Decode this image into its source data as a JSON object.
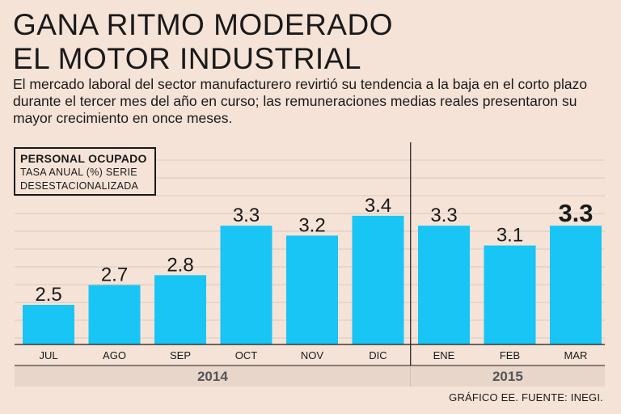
{
  "header": {
    "title_line1": "GANA RITMO MODERADO",
    "title_line2": "EL MOTOR INDUSTRIAL",
    "subtitle": "El mercado laboral del sector manufacturero revirtió su tendencia a la baja en el corto plazo durante el tercer mes del año en curso; las remuneraciones medias reales presentaron su mayor crecimiento en once meses."
  },
  "legend": {
    "title": "PERSONAL OCUPADO",
    "line1": "TASA ANUAL (%) SERIE",
    "line2": "DESESTACIONALIZADA"
  },
  "footer": {
    "source": "GRÁFICO EE. FUENTE: INEGI."
  },
  "colors": {
    "bar": "#18c5f4",
    "background": "#f5e3d7",
    "text": "#1a1a1a",
    "gridline": "#d9c8bd",
    "year_band": "#e9d6ca"
  },
  "chart_data": {
    "type": "bar",
    "title": "PERSONAL OCUPADO",
    "ylabel": "TASA ANUAL (%) SERIE DESESTACIONALIZADA",
    "xlabel": "",
    "categories": [
      "JUL",
      "AGO",
      "SEP",
      "OCT",
      "NOV",
      "DIC",
      "ENE",
      "FEB",
      "MAR"
    ],
    "values": [
      2.5,
      2.7,
      2.8,
      3.3,
      3.2,
      3.4,
      3.3,
      3.1,
      3.3
    ],
    "value_labels": [
      "2.5",
      "2.7",
      "2.8",
      "3.3",
      "3.2",
      "3.4",
      "3.3",
      "3.1",
      "3.3"
    ],
    "highlight_index": 8,
    "ylim": [
      2.1,
      3.5
    ],
    "grid": true,
    "groups": [
      {
        "label": "2014",
        "start": 0,
        "end": 5
      },
      {
        "label": "2015",
        "start": 6,
        "end": 8
      }
    ]
  }
}
